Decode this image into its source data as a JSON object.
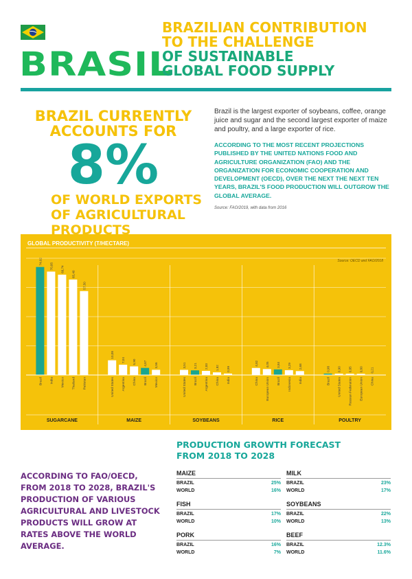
{
  "header": {
    "brand": "BRASIL",
    "headline_lines": [
      "BRAZILIAN CONTRIBUTION",
      "TO THE CHALLENGE",
      "OF SUSTAINABLE",
      "GLOBAL FOOD SUPPLY"
    ],
    "flag_colors": {
      "green": "#1f9a46",
      "yellow": "#f5d000",
      "blue": "#1d3f8f"
    }
  },
  "highlight": {
    "line1": "BRAZIL CURRENTLY",
    "line2": "ACCOUNTS FOR",
    "percent": "8%",
    "line3": "OF WORLD EXPORTS",
    "line4": "OF AGRICULTURAL",
    "line5": "PRODUCTS"
  },
  "intro": {
    "paragraph": "Brazil is the largest exporter of soybeans, coffee, orange juice and sugar and the second largest exporter of maize and poultry, and a large exporter of rice.",
    "emphasis": "According to the most recent projections published by the United Nations Food and Agriculture Organization (FAO) and the Organization for Economic Cooperation and Development (OECD), over the next the next ten years, Brazil's food production will outgrow the global average.",
    "source": "Source: FAO/2019, with data from 2016"
  },
  "chart_data": {
    "type": "bar",
    "title": "GLOBAL PRODUCTIVITY (T/HECTARE)",
    "source": "Source: OECD and FAO/2018",
    "ylim": [
      0,
      80
    ],
    "grid": true,
    "highlight_color": "#1aa58f",
    "bar_color": "#ffffff",
    "groups": [
      {
        "name": "SUGARCANE",
        "bars": [
          {
            "label": "Brazil",
            "value": 74.02,
            "value_label": "74,02",
            "highlight": true
          },
          {
            "label": "India",
            "value": 70.85,
            "value_label": "70,85"
          },
          {
            "label": "Mexico",
            "value": 68.74,
            "value_label": "68,74"
          },
          {
            "label": "Thailand",
            "value": 65.4,
            "value_label": "65,40"
          },
          {
            "label": "Pakistan",
            "value": 57.5,
            "value_label": "57,50"
          }
        ]
      },
      {
        "name": "MAIZE",
        "bars": [
          {
            "label": "United States",
            "value": 10.08,
            "value_label": "10,08"
          },
          {
            "label": "Argentina",
            "value": 7.04,
            "value_label": "7,04"
          },
          {
            "label": "China",
            "value": 5.9,
            "value_label": "5,90"
          },
          {
            "label": "Brazil",
            "value": 4.87,
            "value_label": "4,87",
            "highlight": true
          },
          {
            "label": "Mexico",
            "value": 3.56,
            "value_label": "3,56"
          }
        ]
      },
      {
        "name": "SOYBEANS",
        "bars": [
          {
            "label": "United States",
            "value": 3.51,
            "value_label": "3,51"
          },
          {
            "label": "Brazil",
            "value": 3.21,
            "value_label": "3,21",
            "highlight": true
          },
          {
            "label": "Argentina",
            "value": 2.83,
            "value_label": "2,83"
          },
          {
            "label": "China",
            "value": 1.82,
            "value_label": "1,82"
          },
          {
            "label": "India",
            "value": 0.99,
            "value_label": "0,99"
          }
        ]
      },
      {
        "name": "RICE",
        "bars": [
          {
            "label": "China",
            "value": 4.82,
            "value_label": "4,82"
          },
          {
            "label": "European Union",
            "value": 4.05,
            "value_label": "4,05"
          },
          {
            "label": "Brazil",
            "value": 3.84,
            "value_label": "3,84",
            "highlight": true
          },
          {
            "label": "Indonesia",
            "value": 3.29,
            "value_label": "3,29"
          },
          {
            "label": "India",
            "value": 2.68,
            "value_label": "2,68"
          }
        ]
      },
      {
        "name": "POULTRY",
        "bars": [
          {
            "label": "Brazil",
            "value": 0.98,
            "value_label": "0,98",
            "highlight": true
          },
          {
            "label": "United States",
            "value": 0.9,
            "value_label": "0,90"
          },
          {
            "label": "Russian Federation",
            "value": 0.85,
            "value_label": "0,85"
          },
          {
            "label": "European Union",
            "value": 0.8,
            "value_label": "0,80"
          },
          {
            "label": "China",
            "value": 0.21,
            "value_label": "0,21"
          }
        ]
      }
    ]
  },
  "callout": "According to FAO/OECD, from 2018 to 2028, Brazil's production of various agricultural and livestock products will grow at rates above the world average.",
  "forecast": {
    "title_line1": "PRODUCTION GROWTH FORECAST",
    "title_line2": "FROM 2018 TO 2028",
    "brazil_label": "BRAZIL",
    "world_label": "WORLD",
    "left": [
      {
        "product": "MAIZE",
        "brazil": "25%",
        "world": "16%"
      },
      {
        "product": "FISH",
        "brazil": "17%",
        "world": "10%"
      },
      {
        "product": "PORK",
        "brazil": "16%",
        "world": "7%"
      }
    ],
    "right": [
      {
        "product": "MILK",
        "brazil": "23%",
        "world": "17%"
      },
      {
        "product": "SOYBEANS",
        "brazil": "22%",
        "world": "13%"
      },
      {
        "product": "BEEF",
        "brazil": "12.3%",
        "world": "11.6%"
      }
    ]
  }
}
